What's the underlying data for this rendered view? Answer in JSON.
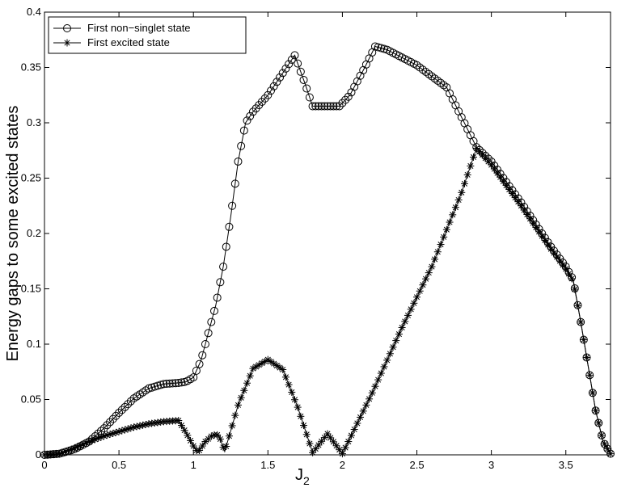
{
  "chart_data": {
    "type": "line",
    "title": "",
    "xlabel": "J",
    "xlabel_sub": "2",
    "ylabel": "Energy gaps to some excited states",
    "xlim": [
      0,
      3.8
    ],
    "ylim": [
      0,
      0.4
    ],
    "x_ticks": [
      0,
      0.5,
      1,
      1.5,
      2,
      2.5,
      3,
      3.5
    ],
    "x_tick_labels": [
      "0",
      "0.5",
      "1",
      "1.5",
      "2",
      "2.5",
      "3",
      "3.5"
    ],
    "y_ticks": [
      0,
      0.05,
      0.1,
      0.15,
      0.2,
      0.25,
      0.3,
      0.35,
      0.4
    ],
    "y_tick_labels": [
      "0",
      "0.05",
      "0.1",
      "0.15",
      "0.2",
      "0.25",
      "0.3",
      "0.35",
      "0.4"
    ],
    "grid": false,
    "legend_position": "top-left",
    "series": [
      {
        "name": "First non−singlet state",
        "marker": "circle",
        "points": [
          [
            0,
            0
          ],
          [
            0.1,
            0.001
          ],
          [
            0.2,
            0.005
          ],
          [
            0.3,
            0.012
          ],
          [
            0.4,
            0.024
          ],
          [
            0.5,
            0.038
          ],
          [
            0.6,
            0.051
          ],
          [
            0.7,
            0.06
          ],
          [
            0.8,
            0.064
          ],
          [
            0.9,
            0.065
          ],
          [
            0.95,
            0.066
          ],
          [
            1.0,
            0.07
          ],
          [
            1.05,
            0.085
          ],
          [
            1.1,
            0.11
          ],
          [
            1.15,
            0.135
          ],
          [
            1.2,
            0.17
          ],
          [
            1.25,
            0.215
          ],
          [
            1.3,
            0.265
          ],
          [
            1.35,
            0.3
          ],
          [
            1.4,
            0.31
          ],
          [
            1.5,
            0.325
          ],
          [
            1.6,
            0.345
          ],
          [
            1.68,
            0.361
          ],
          [
            1.75,
            0.335
          ],
          [
            1.8,
            0.315
          ],
          [
            1.9,
            0.315
          ],
          [
            1.98,
            0.315
          ],
          [
            2.05,
            0.325
          ],
          [
            2.15,
            0.35
          ],
          [
            2.22,
            0.369
          ],
          [
            2.3,
            0.366
          ],
          [
            2.5,
            0.352
          ],
          [
            2.7,
            0.332
          ],
          [
            2.9,
            0.278
          ],
          [
            3.0,
            0.265
          ],
          [
            3.2,
            0.228
          ],
          [
            3.4,
            0.188
          ],
          [
            3.5,
            0.17
          ],
          [
            3.55,
            0.158
          ],
          [
            3.6,
            0.12
          ],
          [
            3.65,
            0.08
          ],
          [
            3.7,
            0.04
          ],
          [
            3.75,
            0.012
          ],
          [
            3.8,
            0.001
          ]
        ]
      },
      {
        "name": "First excited state",
        "marker": "asterisk",
        "points": [
          [
            0,
            0
          ],
          [
            0.1,
            0.001
          ],
          [
            0.2,
            0.006
          ],
          [
            0.3,
            0.012
          ],
          [
            0.4,
            0.017
          ],
          [
            0.5,
            0.021
          ],
          [
            0.6,
            0.025
          ],
          [
            0.7,
            0.028
          ],
          [
            0.8,
            0.03
          ],
          [
            0.9,
            0.031
          ],
          [
            0.95,
            0.02
          ],
          [
            1.0,
            0.008
          ],
          [
            1.03,
            0.002
          ],
          [
            1.08,
            0.012
          ],
          [
            1.13,
            0.018
          ],
          [
            1.17,
            0.018
          ],
          [
            1.21,
            0.003
          ],
          [
            1.3,
            0.045
          ],
          [
            1.4,
            0.078
          ],
          [
            1.5,
            0.086
          ],
          [
            1.6,
            0.077
          ],
          [
            1.7,
            0.043
          ],
          [
            1.8,
            0.002
          ],
          [
            1.9,
            0.019
          ],
          [
            2.0,
            0.001
          ],
          [
            2.2,
            0.056
          ],
          [
            2.4,
            0.115
          ],
          [
            2.6,
            0.17
          ],
          [
            2.8,
            0.237
          ],
          [
            2.9,
            0.277
          ],
          [
            3.0,
            0.262
          ],
          [
            3.2,
            0.225
          ],
          [
            3.4,
            0.186
          ],
          [
            3.5,
            0.168
          ],
          [
            3.55,
            0.157
          ],
          [
            3.6,
            0.12
          ],
          [
            3.65,
            0.08
          ],
          [
            3.7,
            0.04
          ],
          [
            3.75,
            0.012
          ],
          [
            3.8,
            0.001
          ]
        ]
      }
    ]
  }
}
